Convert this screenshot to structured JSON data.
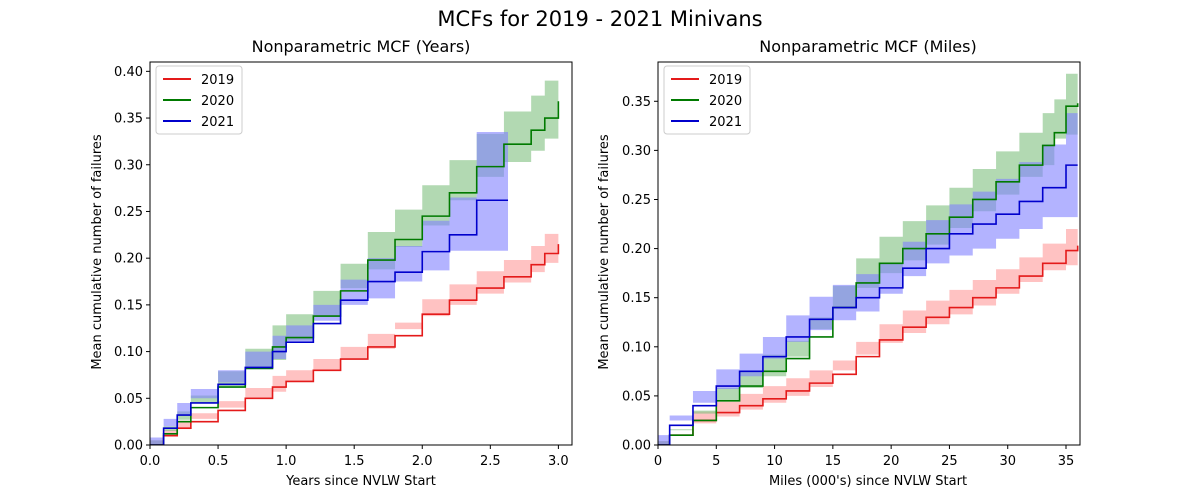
{
  "figure_title": "MCFs for 2019 - 2021 Minivans",
  "chart_data": [
    {
      "type": "line",
      "step": true,
      "title": "Nonparametric MCF (Years)",
      "xlabel": "Years since NVLW Start",
      "ylabel": "Mean cumulative number of failures",
      "xlim": [
        0,
        3.1
      ],
      "ylim": [
        0,
        0.41
      ],
      "xticks": [
        "0.0",
        "0.5",
        "1.0",
        "1.5",
        "2.0",
        "2.5",
        "3.0"
      ],
      "yticks": [
        "0.00",
        "0.05",
        "0.10",
        "0.15",
        "0.20",
        "0.25",
        "0.30",
        "0.35",
        "0.40"
      ],
      "grid": false,
      "legend": "top-left",
      "series": [
        {
          "name": "2019",
          "color": "#e41a1a",
          "band_color": "#ff9999",
          "x": [
            0,
            0.1,
            0.2,
            0.3,
            0.5,
            0.7,
            0.9,
            1.0,
            1.2,
            1.4,
            1.6,
            1.8,
            2.0,
            2.2,
            2.4,
            2.6,
            2.8,
            2.9,
            3.0
          ],
          "y": [
            0,
            0.01,
            0.018,
            0.025,
            0.037,
            0.05,
            0.062,
            0.068,
            0.08,
            0.092,
            0.105,
            0.117,
            0.14,
            0.155,
            0.168,
            0.18,
            0.193,
            0.205,
            0.215
          ],
          "lower": [
            0,
            0.005,
            0.01,
            0.017,
            0.028,
            0.04,
            0.051,
            0.057,
            0.068,
            0.08,
            0.092,
            0.103,
            0.124,
            0.138,
            0.15,
            0.162,
            0.174,
            0.185,
            0.195
          ],
          "upper": [
            0,
            0.016,
            0.026,
            0.034,
            0.047,
            0.061,
            0.074,
            0.08,
            0.092,
            0.105,
            0.119,
            0.131,
            0.156,
            0.172,
            0.186,
            0.198,
            0.213,
            0.226,
            0.24
          ]
        },
        {
          "name": "2020",
          "color": "#007a00",
          "band_color": "#7fbf7f",
          "x": [
            0,
            0.1,
            0.2,
            0.3,
            0.5,
            0.7,
            0.9,
            1.0,
            1.2,
            1.4,
            1.6,
            1.8,
            2.0,
            2.2,
            2.4,
            2.6,
            2.8,
            2.9,
            3.0
          ],
          "y": [
            0,
            0.012,
            0.025,
            0.04,
            0.062,
            0.082,
            0.105,
            0.115,
            0.138,
            0.165,
            0.198,
            0.22,
            0.245,
            0.27,
            0.298,
            0.322,
            0.337,
            0.35,
            0.368
          ],
          "lower": [
            0,
            0.005,
            0.015,
            0.027,
            0.045,
            0.062,
            0.082,
            0.091,
            0.112,
            0.137,
            0.168,
            0.188,
            0.212,
            0.235,
            0.262,
            0.287,
            0.303,
            0.315,
            0.328
          ],
          "upper": [
            0,
            0.02,
            0.036,
            0.053,
            0.079,
            0.103,
            0.128,
            0.14,
            0.165,
            0.194,
            0.228,
            0.252,
            0.278,
            0.305,
            0.333,
            0.357,
            0.374,
            0.39,
            0.408
          ]
        },
        {
          "name": "2021",
          "color": "#0000cc",
          "band_color": "#8080ff",
          "x": [
            0,
            0.1,
            0.2,
            0.3,
            0.5,
            0.7,
            0.9,
            1.0,
            1.2,
            1.4,
            1.6,
            1.8,
            2.0,
            2.2,
            2.4,
            2.63
          ],
          "y": [
            0,
            0.018,
            0.032,
            0.045,
            0.065,
            0.083,
            0.1,
            0.11,
            0.13,
            0.155,
            0.175,
            0.185,
            0.207,
            0.225,
            0.262,
            0.262
          ],
          "lower": [
            0,
            0.008,
            0.02,
            0.032,
            0.05,
            0.067,
            0.083,
            0.092,
            0.11,
            0.133,
            0.15,
            0.157,
            0.175,
            0.187,
            0.208,
            0.208
          ],
          "upper": [
            0,
            0.028,
            0.045,
            0.06,
            0.08,
            0.1,
            0.117,
            0.128,
            0.15,
            0.177,
            0.2,
            0.213,
            0.24,
            0.265,
            0.335,
            0.335
          ]
        }
      ]
    },
    {
      "type": "line",
      "step": true,
      "title": "Nonparametric MCF (Miles)",
      "xlabel": "Miles (000's) since NVLW Start",
      "ylabel": "Mean cumulative number of failures",
      "xlim": [
        0,
        36.2
      ],
      "ylim": [
        0,
        0.39
      ],
      "xticks": [
        "0",
        "5",
        "10",
        "15",
        "20",
        "25",
        "30",
        "35"
      ],
      "yticks": [
        "0.00",
        "0.05",
        "0.10",
        "0.15",
        "0.20",
        "0.25",
        "0.30",
        "0.35"
      ],
      "grid": false,
      "legend": "top-left",
      "series": [
        {
          "name": "2019",
          "color": "#e41a1a",
          "band_color": "#ff9999",
          "x": [
            0,
            1,
            3,
            5,
            7,
            9,
            11,
            13,
            15,
            17,
            19,
            21,
            23,
            25,
            27,
            29,
            31,
            33,
            35,
            36
          ],
          "y": [
            0,
            0.01,
            0.025,
            0.033,
            0.04,
            0.047,
            0.055,
            0.063,
            0.072,
            0.09,
            0.107,
            0.12,
            0.13,
            0.14,
            0.15,
            0.16,
            0.172,
            0.185,
            0.198,
            0.203
          ],
          "lower": [
            0,
            0.004,
            0.016,
            0.022,
            0.029,
            0.036,
            0.043,
            0.05,
            0.059,
            0.076,
            0.092,
            0.104,
            0.114,
            0.123,
            0.133,
            0.142,
            0.154,
            0.166,
            0.178,
            0.183
          ],
          "upper": [
            0,
            0.016,
            0.034,
            0.044,
            0.052,
            0.06,
            0.068,
            0.076,
            0.086,
            0.105,
            0.123,
            0.137,
            0.147,
            0.158,
            0.168,
            0.179,
            0.191,
            0.205,
            0.22,
            0.226
          ]
        },
        {
          "name": "2020",
          "color": "#007a00",
          "band_color": "#7fbf7f",
          "x": [
            0,
            1,
            3,
            5,
            7,
            9,
            11,
            13,
            15,
            17,
            19,
            21,
            23,
            25,
            27,
            29,
            31,
            33,
            34,
            35,
            36
          ],
          "y": [
            0,
            0.01,
            0.025,
            0.045,
            0.06,
            0.075,
            0.088,
            0.11,
            0.14,
            0.165,
            0.185,
            0.2,
            0.215,
            0.232,
            0.25,
            0.268,
            0.285,
            0.305,
            0.318,
            0.345,
            0.348
          ],
          "lower": [
            0,
            0.004,
            0.015,
            0.032,
            0.045,
            0.058,
            0.07,
            0.09,
            0.118,
            0.14,
            0.16,
            0.175,
            0.188,
            0.204,
            0.221,
            0.238,
            0.255,
            0.273,
            0.285,
            0.312,
            0.316
          ],
          "upper": [
            0,
            0.016,
            0.035,
            0.058,
            0.075,
            0.092,
            0.106,
            0.13,
            0.162,
            0.19,
            0.212,
            0.228,
            0.244,
            0.262,
            0.281,
            0.299,
            0.318,
            0.338,
            0.352,
            0.378,
            0.382
          ]
        },
        {
          "name": "2021",
          "color": "#0000cc",
          "band_color": "#8080ff",
          "x": [
            0,
            1,
            3,
            5,
            7,
            9,
            11,
            13,
            15,
            17,
            19,
            21,
            23,
            25,
            27,
            29,
            31,
            33,
            35,
            36
          ],
          "y": [
            0,
            0.02,
            0.04,
            0.06,
            0.075,
            0.09,
            0.11,
            0.128,
            0.14,
            0.15,
            0.16,
            0.18,
            0.2,
            0.215,
            0.225,
            0.235,
            0.248,
            0.262,
            0.285,
            0.285
          ],
          "lower": [
            0,
            0.01,
            0.025,
            0.043,
            0.057,
            0.07,
            0.088,
            0.105,
            0.117,
            0.127,
            0.136,
            0.154,
            0.172,
            0.185,
            0.193,
            0.2,
            0.21,
            0.22,
            0.232,
            0.232
          ],
          "upper": [
            0,
            0.03,
            0.055,
            0.077,
            0.093,
            0.11,
            0.132,
            0.151,
            0.163,
            0.174,
            0.185,
            0.207,
            0.229,
            0.245,
            0.258,
            0.271,
            0.288,
            0.306,
            0.338,
            0.338
          ]
        }
      ]
    }
  ]
}
